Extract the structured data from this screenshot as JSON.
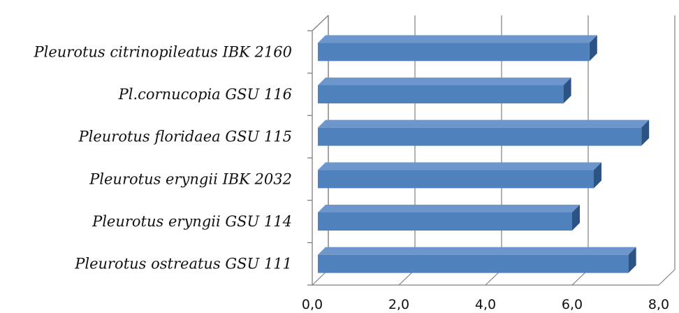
{
  "chart_data": {
    "type": "bar",
    "orientation": "horizontal",
    "style": "3d",
    "title": "",
    "xlabel": "",
    "ylabel": "",
    "categories": [
      "Pleurotus ostreatus GSU 111",
      "Pleurotus eryngii GSU 114",
      "Pleurotus eryngii IBK 2032",
      "Pleurotus floridaea GSU 115",
      "Pl.cornucopia GSU 116",
      "Pleurotus citrinopileatus IBK 2160"
    ],
    "values": [
      7.3,
      6.0,
      6.5,
      7.6,
      5.8,
      6.4
    ],
    "xlim": [
      0,
      8
    ],
    "ticks": [
      "0,0",
      "2,0",
      "4,0",
      "6,0",
      "8,0"
    ],
    "grid": true,
    "legend": "none",
    "colors": {
      "bar_front": "#4f81bd",
      "bar_top": "#6d96cc",
      "bar_side": "#2b5485",
      "grid": "#808080"
    }
  }
}
